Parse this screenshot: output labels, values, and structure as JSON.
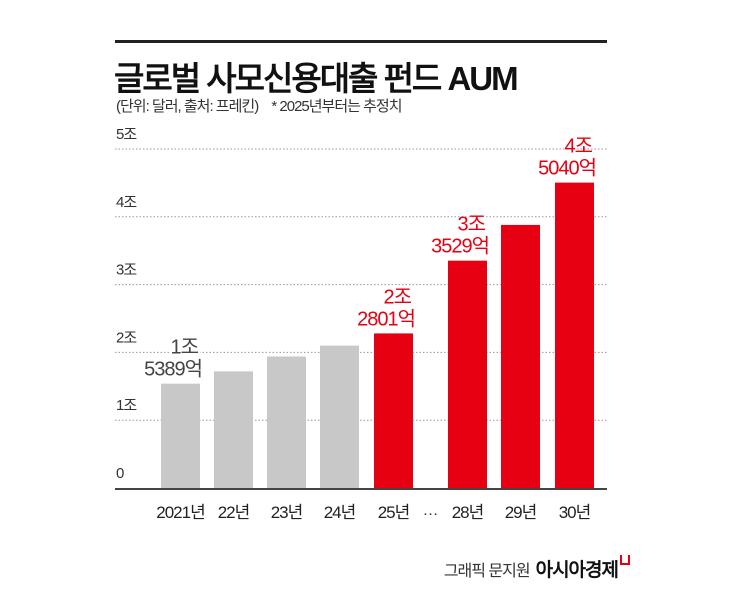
{
  "title": "글로벌 사모신용대출 펀드 AUM",
  "subtitle": {
    "unit_source": "(단위: 달러, 출처: 프레킨)",
    "note": "* 2025년부터는 추정치"
  },
  "credit": {
    "graphic": "그래픽 문지원",
    "brand": "아시아경제"
  },
  "colors": {
    "actual": "#c8c8c8",
    "estimate": "#e60012",
    "label_actual": "#444444",
    "label_estimate": "#e60012"
  },
  "chart_data": {
    "type": "bar",
    "title": "글로벌 사모신용대출 펀드 AUM",
    "xlabel": "",
    "ylabel": "",
    "unit": "조 달러",
    "ylim": [
      0,
      5
    ],
    "yticks": [
      {
        "value": 0,
        "label": "0"
      },
      {
        "value": 1,
        "label": "1조"
      },
      {
        "value": 2,
        "label": "2조"
      },
      {
        "value": 3,
        "label": "3조"
      },
      {
        "value": 4,
        "label": "4조"
      },
      {
        "value": 5,
        "label": "5조"
      }
    ],
    "grid": true,
    "categories": [
      "2021년",
      "22년",
      "23년",
      "24년",
      "25년",
      "28년",
      "29년",
      "30년"
    ],
    "axis_gap_label": "…",
    "values": [
      1.5389,
      1.72,
      1.94,
      2.1,
      2.2801,
      3.3529,
      3.88,
      4.504
    ],
    "estimate": [
      false,
      false,
      false,
      false,
      true,
      true,
      true,
      true
    ],
    "data_labels": [
      {
        "index": 0,
        "line1": "1조",
        "line2": "5389억"
      },
      {
        "index": 4,
        "line1": "2조",
        "line2": "2801억"
      },
      {
        "index": 5,
        "line1": "3조",
        "line2": "3529억"
      },
      {
        "index": 7,
        "line1": "4조",
        "line2": "5040억"
      }
    ]
  }
}
